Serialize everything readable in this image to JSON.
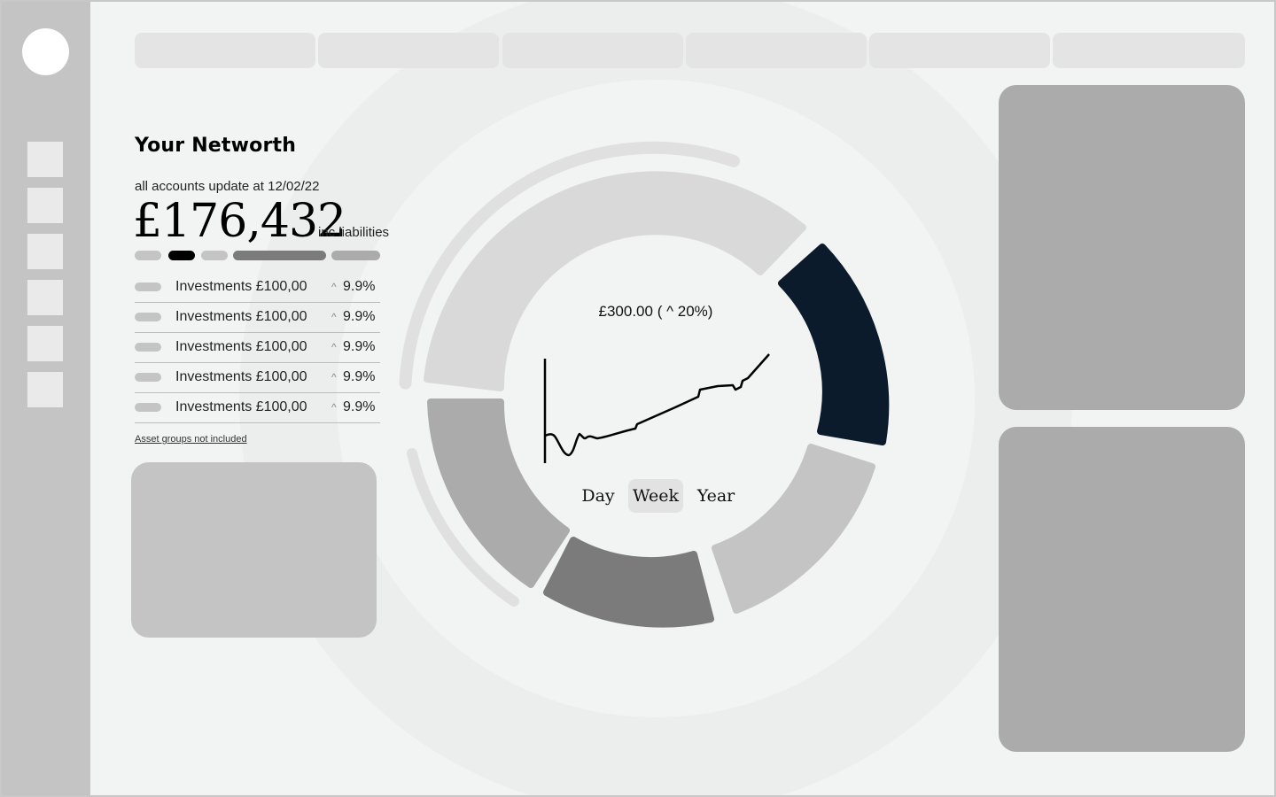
{
  "networth": {
    "title": "Your Networth",
    "update_note": "all accounts update at 12/02/22",
    "amount": "£176,432",
    "amount_note": "inc liabilities",
    "accounts": [
      {
        "label": "Investments £100,00",
        "change_icon": "caret-up-icon",
        "change": "9.9%"
      },
      {
        "label": "Investments £100,00",
        "change_icon": "caret-up-icon",
        "change": "9.9%"
      },
      {
        "label": "Investments £100,00",
        "change_icon": "caret-up-icon",
        "change": "9.9%"
      },
      {
        "label": "Investments £100,00",
        "change_icon": "caret-up-icon",
        "change": "9.9%"
      },
      {
        "label": "Investments £100,00",
        "change_icon": "caret-up-icon",
        "change": "9.9%"
      }
    ],
    "caret": "^",
    "footnote": "Asset groups not included"
  },
  "chart": {
    "center_value": "£300.00 ( ^ 20%)",
    "ranges": [
      "Day",
      "Week",
      "Year"
    ],
    "selected_range": "Week"
  },
  "colors": {
    "accent": "#0b1b2b",
    "sidebar": "#c4c4c4",
    "background": "#f2f4f4",
    "segment_light": "#d9d9d9",
    "segment_mid": "#ababab",
    "segment_dark": "#7b7b7b"
  }
}
